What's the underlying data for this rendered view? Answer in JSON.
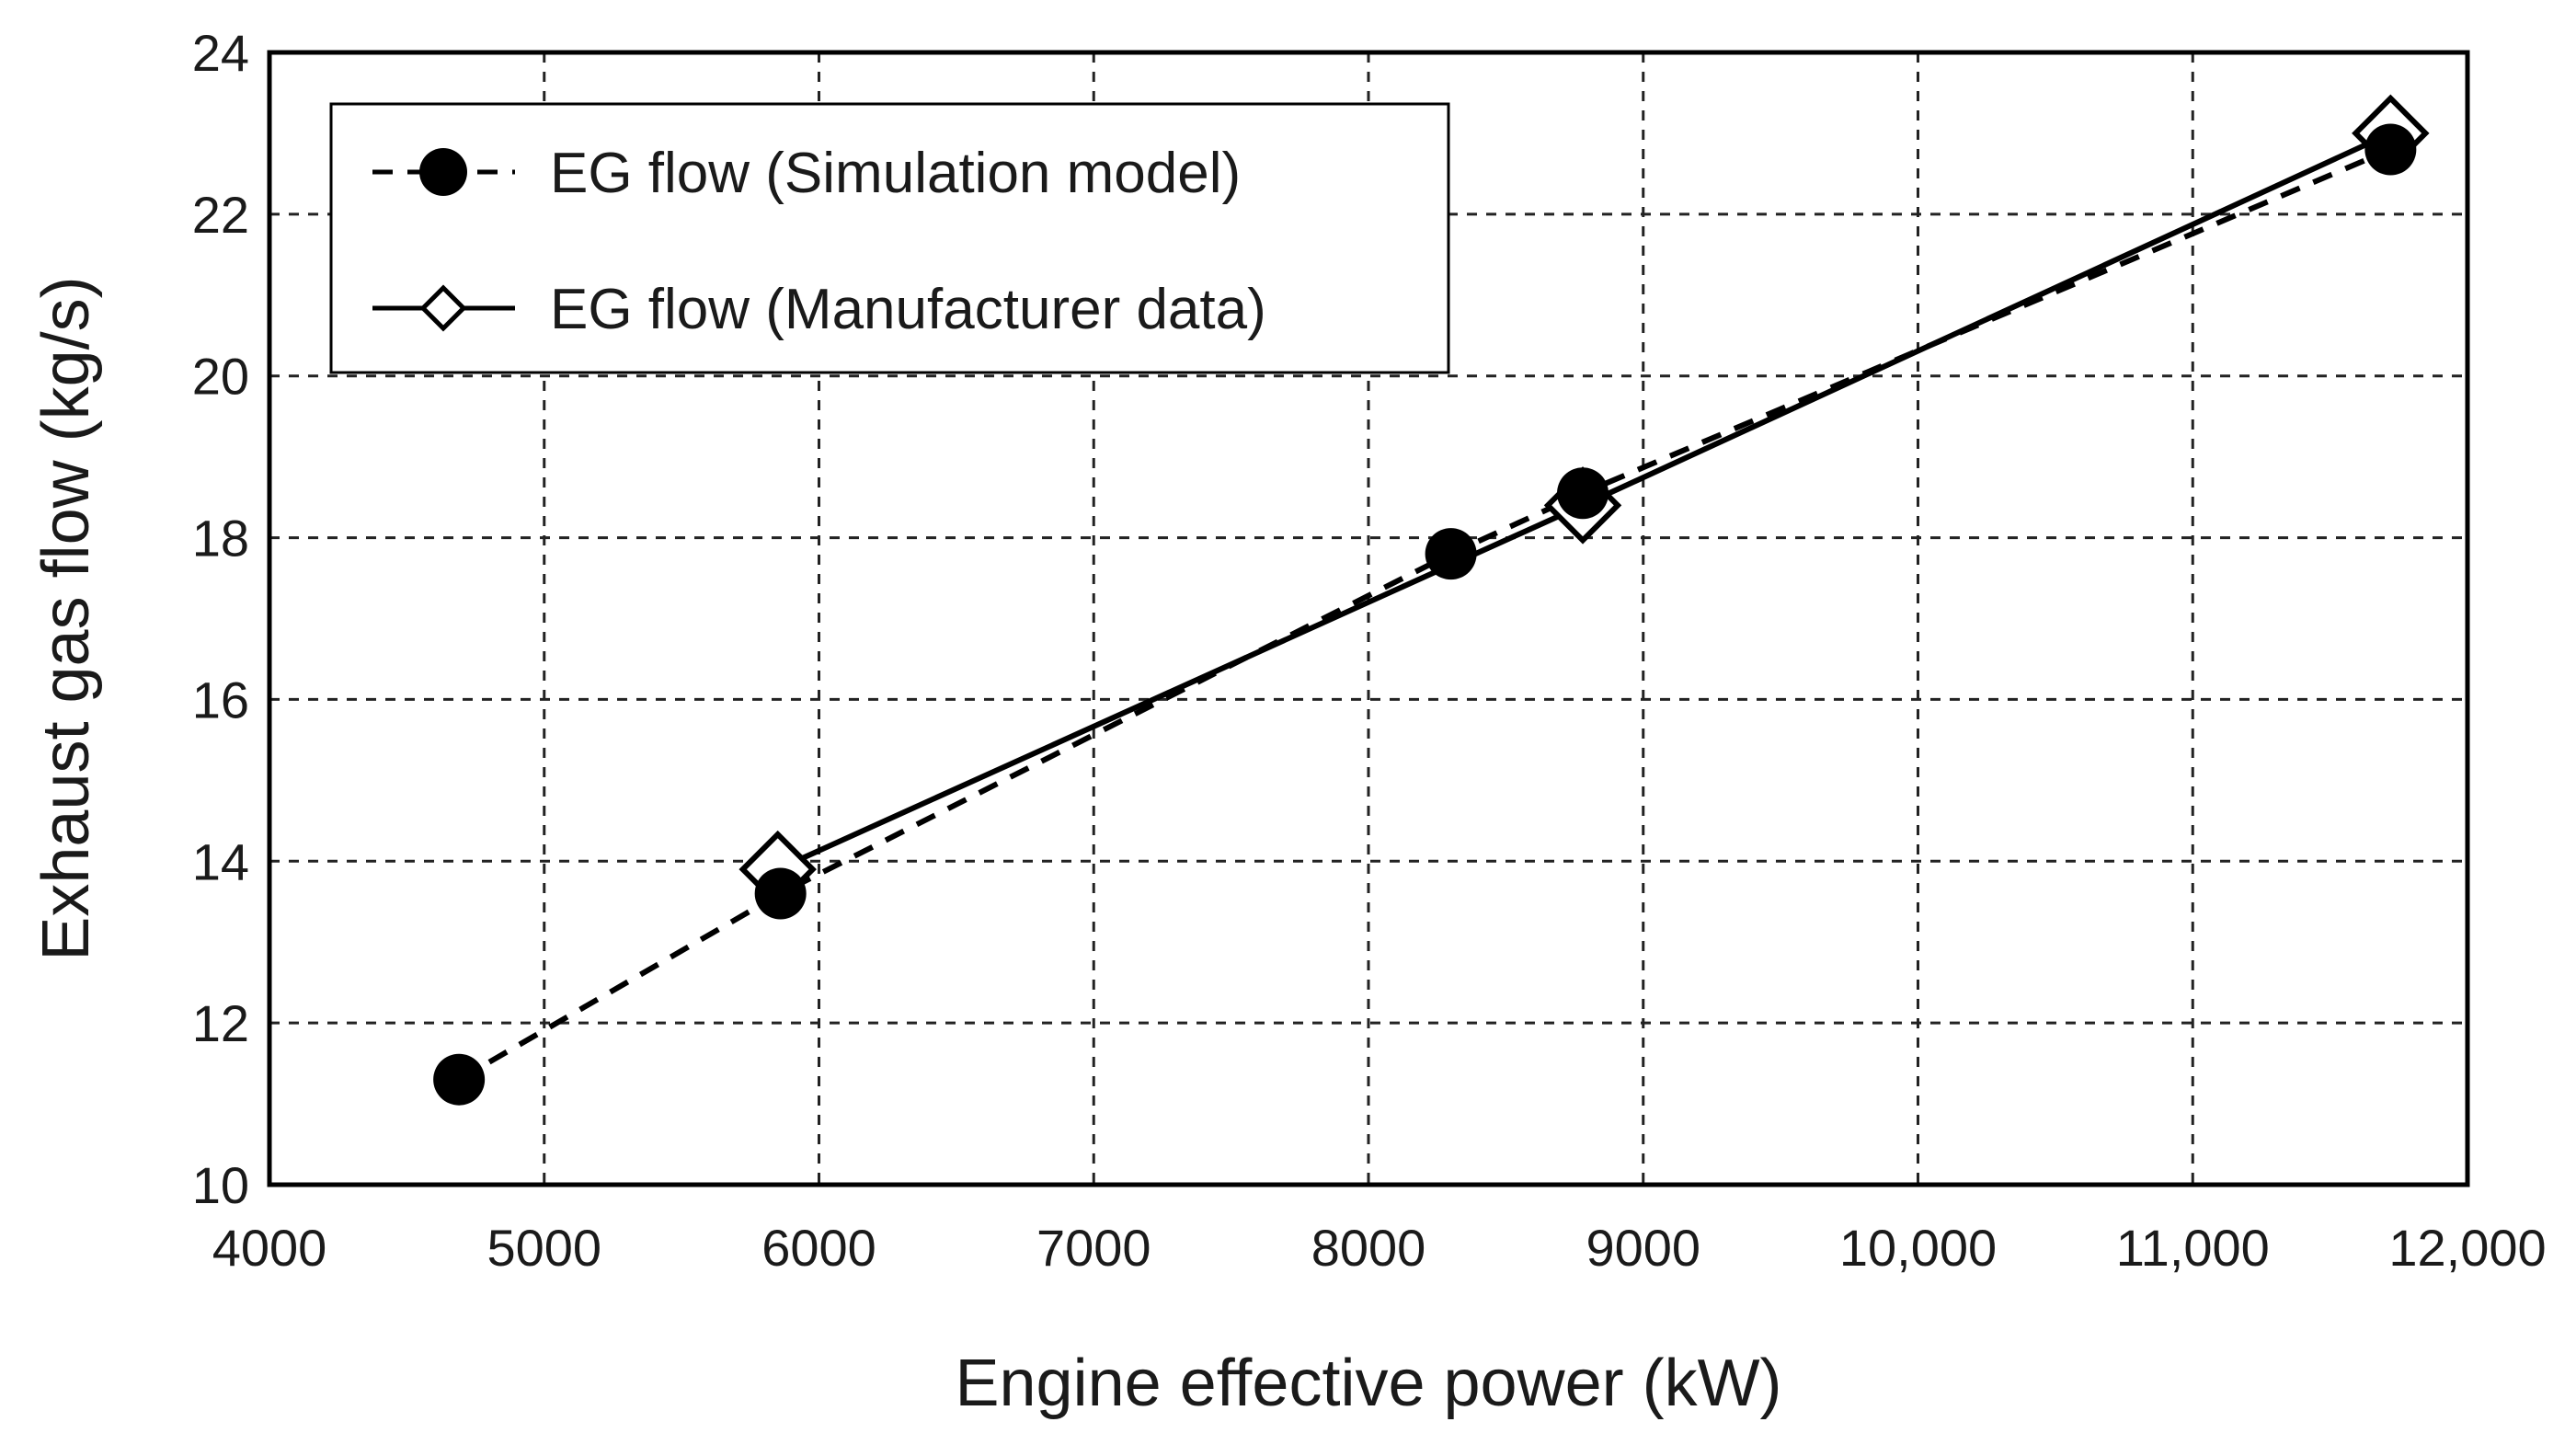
{
  "chart_data": {
    "type": "scatter",
    "title": "",
    "xlabel": "Engine effective power (kW)",
    "ylabel": "Exhaust gas flow  (kg/s)",
    "xlim": [
      4000,
      12000
    ],
    "ylim": [
      10,
      24
    ],
    "grid": true,
    "legend_position": "top-left",
    "x_ticks": [
      {
        "value": 4000,
        "label": "4000"
      },
      {
        "value": 5000,
        "label": "5000"
      },
      {
        "value": 6000,
        "label": "6000"
      },
      {
        "value": 7000,
        "label": "7000"
      },
      {
        "value": 8000,
        "label": "8000"
      },
      {
        "value": 9000,
        "label": "9000"
      },
      {
        "value": 10000,
        "label": "10,000"
      },
      {
        "value": 11000,
        "label": "11,000"
      },
      {
        "value": 12000,
        "label": "12,000"
      }
    ],
    "y_ticks": [
      {
        "value": 10,
        "label": "10"
      },
      {
        "value": 12,
        "label": "12"
      },
      {
        "value": 14,
        "label": "14"
      },
      {
        "value": 16,
        "label": "16"
      },
      {
        "value": 18,
        "label": "18"
      },
      {
        "value": 20,
        "label": "20"
      },
      {
        "value": 22,
        "label": "22"
      },
      {
        "value": 24,
        "label": "24"
      }
    ],
    "series": [
      {
        "name": "EG flow (Simulation model)",
        "line": "dashed",
        "marker": "filled-circle",
        "x": [
          4690,
          5860,
          8300,
          8780,
          11720
        ],
        "y": [
          11.3,
          13.6,
          17.8,
          18.55,
          22.8
        ]
      },
      {
        "name": "EG flow (Manufacturer data)",
        "line": "solid",
        "marker": "open-diamond",
        "x": [
          5850,
          8780,
          11720
        ],
        "y": [
          13.9,
          18.4,
          23.0
        ]
      }
    ]
  }
}
